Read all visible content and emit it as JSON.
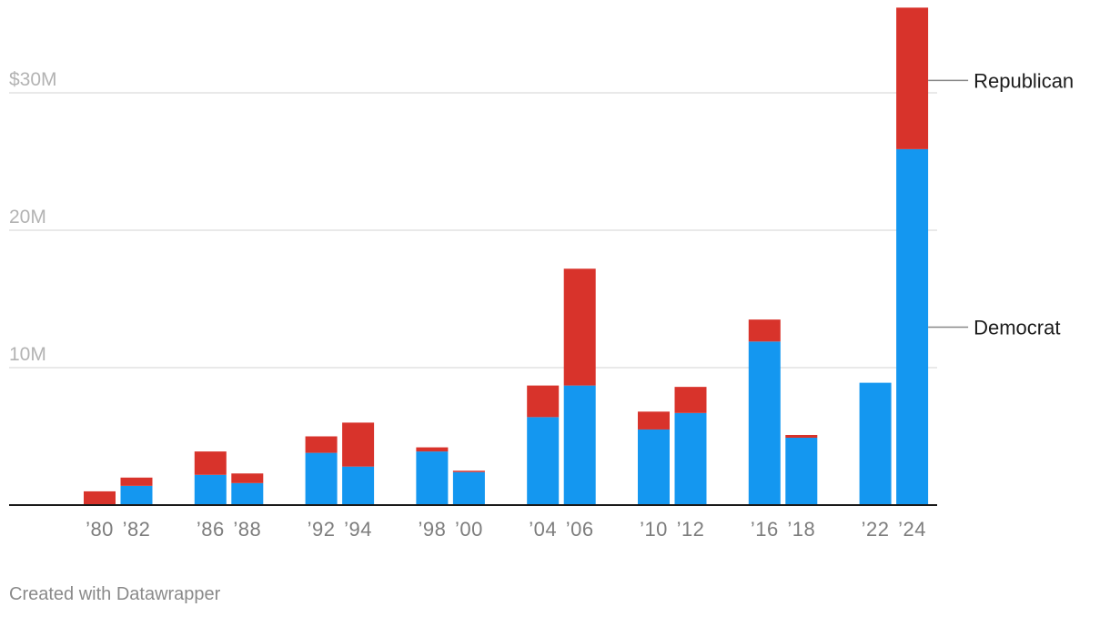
{
  "chart_data": {
    "type": "bar",
    "stacked": true,
    "title": "",
    "xlabel": "",
    "ylabel": "",
    "ylim": [
      0,
      36
    ],
    "y_unit": "millions of dollars",
    "y_ticks": [
      {
        "value": 10,
        "label": "10M"
      },
      {
        "value": 20,
        "label": "20M"
      },
      {
        "value": 30,
        "label": "$30M"
      }
    ],
    "grid": true,
    "categories": [
      "1980",
      "1982",
      "1986",
      "1988",
      "1992",
      "1994",
      "1998",
      "2000",
      "2004",
      "2006",
      "2010",
      "2012",
      "2016",
      "2018",
      "2022",
      "2024"
    ],
    "x_tick_labels": [
      "’80",
      "’82",
      "’86",
      "’88",
      "’92",
      "’94",
      "’98",
      "’00",
      "’04",
      "’06",
      "’10",
      "’12",
      "’16",
      "’18",
      "’22",
      "’24"
    ],
    "series": [
      {
        "name": "Democrat",
        "color": "#1497f0",
        "values": [
          0,
          1.4,
          2.2,
          1.6,
          3.8,
          2.8,
          3.9,
          2.4,
          6.4,
          8.7,
          5.5,
          6.7,
          11.9,
          4.9,
          8.9,
          25.9
        ]
      },
      {
        "name": "Republican",
        "color": "#d8332b",
        "values": [
          1.0,
          0.6,
          1.7,
          0.7,
          1.2,
          3.2,
          0.3,
          0.1,
          2.3,
          8.5,
          1.3,
          1.9,
          1.6,
          0.2,
          0,
          10.3
        ]
      }
    ],
    "legend": "direct labels at right end"
  },
  "footer": {
    "credit": "Created with Datawrapper"
  }
}
